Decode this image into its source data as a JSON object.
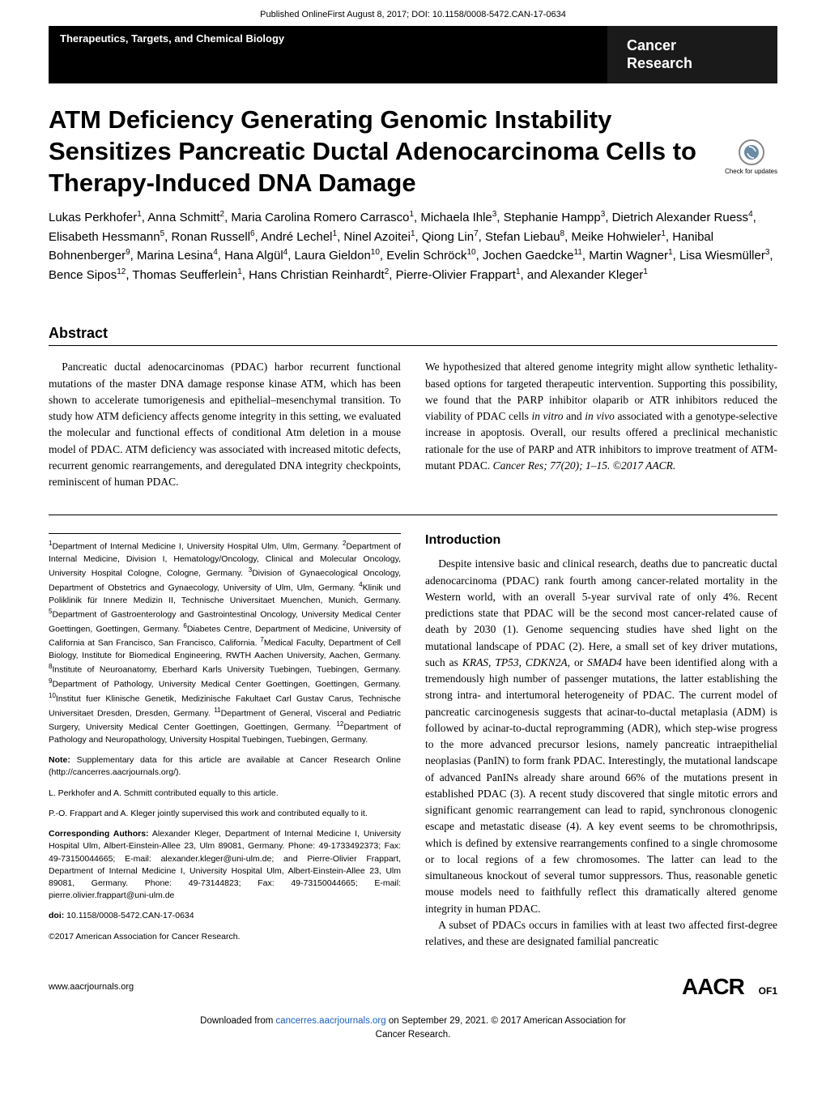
{
  "top": {
    "published": "Published OnlineFirst August 8, 2017; DOI: 10.1158/0008-5472.CAN-17-0634"
  },
  "header": {
    "section": "Therapeutics, Targets, and Chemical Biology",
    "journal_l1": "Cancer",
    "journal_l2": "Research"
  },
  "check_updates": "Check for updates",
  "title": "ATM Deficiency Generating Genomic Instability Sensitizes Pancreatic Ductal Adenocarcinoma Cells to Therapy-Induced DNA Damage",
  "authors_html": "Lukas Perkhofer<sup>1</sup>, Anna Schmitt<sup>2</sup>, Maria Carolina Romero Carrasco<sup>1</sup>, Michaela Ihle<sup>3</sup>, Stephanie Hampp<sup>3</sup>, Dietrich Alexander Ruess<sup>4</sup>, Elisabeth Hessmann<sup>5</sup>, Ronan Russell<sup>6</sup>, André Lechel<sup>1</sup>, Ninel Azoitei<sup>1</sup>, Qiong Lin<sup>7</sup>, Stefan Liebau<sup>8</sup>, Meike Hohwieler<sup>1</sup>, Hanibal Bohnenberger<sup>9</sup>, Marina Lesina<sup>4</sup>, Hana Algül<sup>4</sup>, Laura Gieldon<sup>10</sup>, Evelin Schröck<sup>10</sup>, Jochen Gaedcke<sup>11</sup>, Martin Wagner<sup>1</sup>, Lisa Wiesmüller<sup>3</sup>, Bence Sipos<sup>12</sup>, Thomas Seufferlein<sup>1</sup>, Hans Christian Reinhardt<sup>2</sup>, Pierre-Olivier Frappart<sup>1</sup>, and Alexander Kleger<sup>1</sup>",
  "abstract": {
    "heading": "Abstract",
    "left": "Pancreatic ductal adenocarcinomas (PDAC) harbor recurrent functional mutations of the master DNA damage response kinase ATM, which has been shown to accelerate tumorigenesis and epithelial–mesenchymal transition. To study how ATM deficiency affects genome integrity in this setting, we evaluated the molecular and functional effects of conditional Atm deletion in a mouse model of PDAC. ATM deficiency was associated with increased mitotic defects, recurrent genomic rearrangements, and deregulated DNA integrity checkpoints, reminiscent of human PDAC.",
    "right_html": "We hypothesized that altered genome integrity might allow synthetic lethality-based options for targeted therapeutic intervention. Supporting this possibility, we found that the PARP inhibitor olaparib or ATR inhibitors reduced the viability of PDAC cells <i>in vitro</i> and <i>in vivo</i> associated with a genotype-selective increase in apoptosis. Overall, our results offered a preclinical mechanistic rationale for the use of PARP and ATR inhibitors to improve treatment of ATM-mutant PDAC. <i>Cancer Res; 77(20); 1–15. ©2017 AACR.</i>"
  },
  "affiliations_html": "<sup>1</sup>Department of Internal Medicine I, University Hospital Ulm, Ulm, Germany. <sup>2</sup>Department of Internal Medicine, Division I, Hematology/Oncology, Clinical and Molecular Oncology, University Hospital Cologne, Cologne, Germany. <sup>3</sup>Division of Gynaecological Oncology, Department of Obstetrics and Gynaecology, University of Ulm, Ulm, Germany. <sup>4</sup>Klinik und Poliklinik für Innere Medizin II, Technische Universitaet Muenchen, Munich, Germany. <sup>5</sup>Department of Gastroenterology and Gastrointestinal Oncology, University Medical Center Goettingen, Goettingen, Germany. <sup>6</sup>Diabetes Centre, Department of Medicine, University of California at San Francisco, San Francisco, California. <sup>7</sup>Medical Faculty, Department of Cell Biology, Institute for Biomedical Engineering, RWTH Aachen University, Aachen, Germany. <sup>8</sup>Institute of Neuroanatomy, Eberhard Karls University Tuebingen, Tuebingen, Germany. <sup>9</sup>Department of Pathology, University Medical Center Goettingen, Goettingen, Germany. <sup>10</sup>Institut fuer Klinische Genetik, Medizinische Fakultaet Carl Gustav Carus, Technische Universitaet Dresden, Dresden, Germany. <sup>11</sup>Department of General, Visceral and Pediatric Surgery, University Medical Center Goettingen, Goettingen, Germany. <sup>12</sup>Department of Pathology and Neuropathology, University Hospital Tuebingen, Tuebingen, Germany.",
  "meta": {
    "note_html": "<b>Note:</b> Supplementary data for this article are available at Cancer Research Online (http://cancerres.aacrjournals.org/).",
    "equal1": "L. Perkhofer and A. Schmitt contributed equally to this article.",
    "equal2": "P.-O. Frappart and A. Kleger jointly supervised this work and contributed equally to it.",
    "corresponding_html": "<b>Corresponding Authors:</b> Alexander Kleger, Department of Internal Medicine I, University Hospital Ulm, Albert-Einstein-Allee 23, Ulm 89081, Germany. Phone: 49-1733492373; Fax: 49-73150044665; E-mail: alexander.kleger@uni-ulm.de; and Pierre-Olivier Frappart, Department of Internal Medicine I, University Hospital Ulm, Albert-Einstein-Allee 23, Ulm 89081, Germany. Phone: 49-73144823; Fax: 49-73150044665; E-mail: pierre.olivier.frappart@uni-ulm.de",
    "doi_html": "<b>doi:</b> 10.1158/0008-5472.CAN-17-0634",
    "copyright": "©2017 American Association for Cancer Research."
  },
  "introduction": {
    "heading": "Introduction",
    "p1_html": "Despite intensive basic and clinical research, deaths due to pancreatic ductal adenocarcinoma (PDAC) rank fourth among cancer-related mortality in the Western world, with an overall 5-year survival rate of only 4%. Recent predictions state that PDAC will be the second most cancer-related cause of death by 2030 (1). Genome sequencing studies have shed light on the mutational landscape of PDAC (2). Here, a small set of key driver mutations, such as <i>KRAS, TP53, CDKN2A</i>, or <i>SMAD4</i> have been identified along with a tremendously high number of passenger mutations, the latter establishing the strong intra- and intertumoral heterogeneity of PDAC. The current model of pancreatic carcinogenesis suggests that acinar-to-ductal metaplasia (ADM) is followed by acinar-to-ductal reprogramming (ADR), which step-wise progress to the more advanced precursor lesions, namely pancreatic intraepithelial neoplasias (PanIN) to form frank PDAC. Interestingly, the mutational landscape of advanced PanINs already share around 66% of the mutations present in established PDAC (3). A recent study discovered that single mitotic errors and significant genomic rearrangement can lead to rapid, synchronous clonogenic escape and metastatic disease (4). A key event seems to be chromothripsis, which is defined by extensive rearrangements confined to a single chromosome or to local regions of a few chromosomes. The latter can lead to the simultaneous knockout of several tumor suppressors. Thus, reasonable genetic mouse models need to faithfully reflect this dramatically altered genome integrity in human PDAC.",
    "p2": "A subset of PDACs occurs in families with at least two affected first-degree relatives, and these are designated familial pancreatic"
  },
  "footer": {
    "url": "www.aacrjournals.org",
    "logo": "AACR",
    "pagenum": "OF1"
  },
  "download": {
    "text_pre": "Downloaded from ",
    "link": "cancerres.aacrjournals.org",
    "text_mid": " on September 29, 2021. © 2017 American Association for",
    "text_l2": "Cancer Research."
  },
  "colors": {
    "link": "#1a5fb4",
    "header_bg": "#000000",
    "journal_bg": "#1a1a1a",
    "text": "#000000",
    "bg": "#ffffff"
  }
}
